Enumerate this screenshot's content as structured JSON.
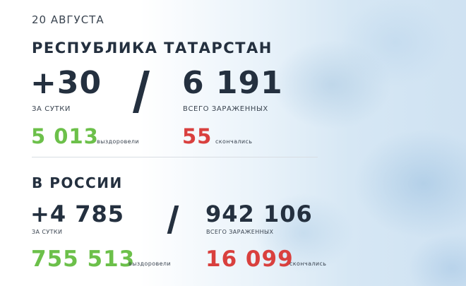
{
  "date": "20 АВГУСТА",
  "tatarstan": {
    "title": "РЕСПУБЛИКА ТАТАРСТАН",
    "daily": "+30",
    "daily_label": "ЗА СУТКИ",
    "total": "6 191",
    "total_label": "ВСЕГО ЗАРАЖЕННЫХ",
    "recovered": "5 013",
    "recovered_label": "выздоровели",
    "deaths": "55",
    "deaths_label": "скончались"
  },
  "russia": {
    "title": "В РОССИИ",
    "daily": "+4 785",
    "daily_label": "ЗА СУТКИ",
    "total": "942 106",
    "total_label": "ВСЕГО ЗАРАЖЕННЫХ",
    "recovered": "755 513",
    "recovered_label": "выздоровели",
    "deaths": "16 099",
    "deaths_label": "скончались"
  },
  "colors": {
    "text": "#24303f",
    "recovered": "#6cc04a",
    "deaths": "#d9403e",
    "background_accent": "#cfe2f2"
  }
}
